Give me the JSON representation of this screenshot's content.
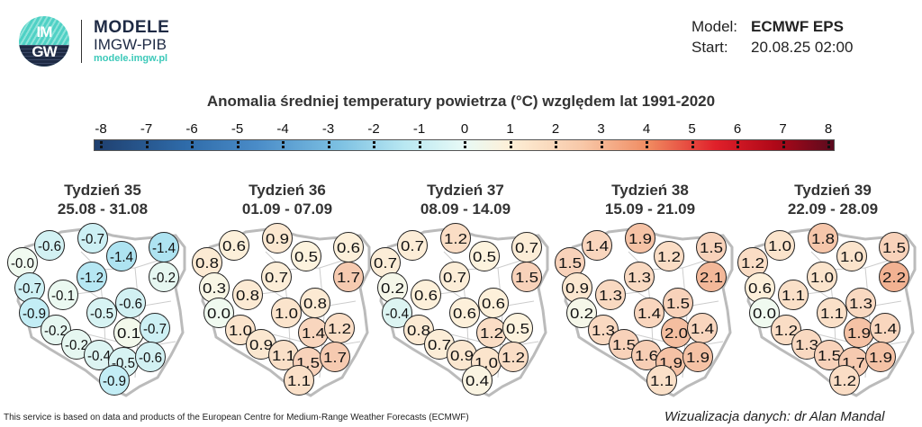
{
  "logo": {
    "letters_top": "IM",
    "letters_bottom": "GW",
    "title": "MODELE",
    "subtitle": "IMGW-PIB",
    "url": "modele.imgw.pl"
  },
  "meta": {
    "model_label": "Model:",
    "model_value": "ECMWF EPS",
    "start_label": "Start:",
    "start_value": "20.08.25 02:00"
  },
  "title": "Anomalia średniej temperatury powietrza (°C) względem lat 1991-2020",
  "colorbar": {
    "ticks": [
      "-8",
      "-7",
      "-6",
      "-5",
      "-4",
      "-3",
      "-2",
      "-1",
      "0",
      "1",
      "2",
      "3",
      "4",
      "5",
      "6",
      "7",
      "8"
    ],
    "min": -8,
    "max": 8,
    "colors": {
      "cold": "#1f3f6e",
      "neutral": "#e8faf6",
      "warm": "#e0202a",
      "hot": "#5a0a1e"
    }
  },
  "weeks": [
    {
      "title": "Tydzień 35",
      "dates": "25.08 - 31.08",
      "values": [
        "-0.6",
        "-0.7",
        "-1.4",
        "-1.4",
        "-0.0",
        "-0.2",
        "-1.2",
        "-0.7",
        "-0.1",
        "-0.6",
        "-0.5",
        "-0.9",
        "-0.2",
        "0.1",
        "-0.7",
        "-0.2",
        "-0.4",
        "-0.5",
        "-0.6",
        "-0.9"
      ]
    },
    {
      "title": "Tydzień 36",
      "dates": "01.09 - 07.09",
      "values": [
        "0.6",
        "0.9",
        "0.5",
        "0.6",
        "0.8",
        "1.7",
        "0.7",
        "0.3",
        "0.8",
        "0.8",
        "1.0",
        "0.0",
        "1.0",
        "1.4",
        "1.2",
        "0.9",
        "1.1",
        "1.5",
        "1.7",
        "1.1"
      ]
    },
    {
      "title": "Tydzień 37",
      "dates": "08.09 - 14.09",
      "values": [
        "0.7",
        "1.2",
        "0.5",
        "0.7",
        "0.7",
        "1.5",
        "0.7",
        "0.2",
        "0.6",
        "0.6",
        "0.6",
        "-0.4",
        "0.8",
        "1.2",
        "0.5",
        "0.7",
        "0.9",
        "1.0",
        "1.2",
        "0.4"
      ]
    },
    {
      "title": "Tydzień 38",
      "dates": "15.09 - 21.09",
      "values": [
        "1.4",
        "1.9",
        "1.2",
        "1.5",
        "1.5",
        "2.1",
        "1.3",
        "0.9",
        "1.3",
        "1.5",
        "1.4",
        "0.2",
        "1.3",
        "2.0",
        "1.4",
        "1.5",
        "1.6",
        "1.9",
        "1.9",
        "1.1"
      ]
    },
    {
      "title": "Tydzień 39",
      "dates": "22.09 - 28.09",
      "values": [
        "1.0",
        "1.8",
        "1.0",
        "1.5",
        "1.2",
        "2.2",
        "1.0",
        "0.6",
        "1.1",
        "1.3",
        "1.1",
        "0.0",
        "1.2",
        "1.9",
        "1.4",
        "1.3",
        "1.5",
        "1.7",
        "1.9",
        "1.2"
      ]
    }
  ],
  "footer": {
    "source": "This service is based on data and products of the European Centre for Medium-Range Weather Forecasts (ECMWF)",
    "credit": "Wizualizacja danych: dr Alan Mandal"
  }
}
